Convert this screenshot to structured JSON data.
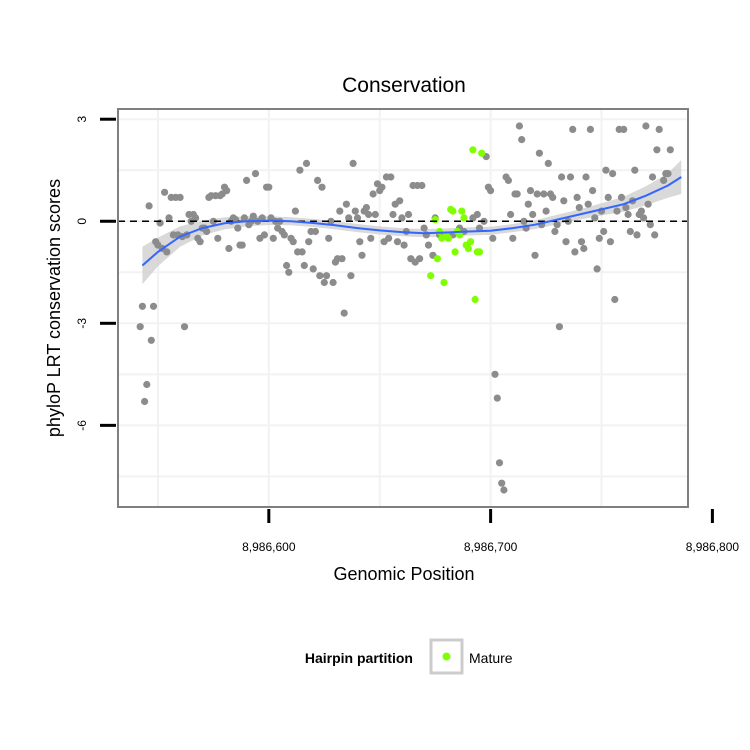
{
  "chart_data": {
    "type": "scatter",
    "title": "Conservation",
    "xlabel": "Genomic Position",
    "ylabel": "phyloP LRT conservation scores",
    "xlim": [
      8986532,
      8986789
    ],
    "ylim": [
      -8.4,
      3.3
    ],
    "x_ticks": [
      8986600,
      8986700,
      8986800
    ],
    "x_tick_labels": [
      "8,986,600",
      "8,986,700",
      "8,986,800"
    ],
    "y_ticks": [
      3,
      0,
      -3,
      -6
    ],
    "y_tick_labels": [
      "3",
      "0",
      "-3",
      "-6"
    ],
    "grid": true,
    "reference_line": {
      "y": 0,
      "style": "dashed"
    },
    "legend": {
      "title": "Hairpin partition",
      "placement": "bottom",
      "entries": [
        "Mature"
      ]
    },
    "colors": {
      "background_points": "#8c8c8c",
      "mature": "#7fff00",
      "trend": "#3366ff",
      "confidence_band": "#cccccc",
      "panel_border": "#7f7f7f",
      "grid": "#f2f2f2"
    },
    "series": [
      {
        "name": "",
        "points": [
          [
            8986542,
            -3.1
          ],
          [
            8986543,
            -2.5
          ],
          [
            8986544,
            -5.3
          ],
          [
            8986545,
            -4.8
          ],
          [
            8986546,
            0.45
          ],
          [
            8986547,
            -3.5
          ],
          [
            8986548,
            -2.5
          ],
          [
            8986549,
            -0.6
          ],
          [
            8986550,
            -0.7
          ],
          [
            8986551,
            -0.05
          ],
          [
            8986552,
            -0.8
          ],
          [
            8986553,
            0.85
          ],
          [
            8986554,
            -0.9
          ],
          [
            8986555,
            0.1
          ],
          [
            8986556,
            0.7
          ],
          [
            8986557,
            -0.4
          ],
          [
            8986558,
            0.7
          ],
          [
            8986559,
            -0.4
          ],
          [
            8986560,
            0.7
          ],
          [
            8986561,
            -0.45
          ],
          [
            8986562,
            -3.1
          ],
          [
            8986563,
            -0.4
          ],
          [
            8986564,
            0.2
          ],
          [
            8986565,
            0.0
          ],
          [
            8986566,
            0.2
          ],
          [
            8986567,
            0.1
          ],
          [
            8986568,
            -0.5
          ],
          [
            8986569,
            -0.6
          ],
          [
            8986570,
            -0.2
          ],
          [
            8986571,
            -0.2
          ],
          [
            8986572,
            -0.3
          ],
          [
            8986573,
            0.7
          ],
          [
            8986574,
            0.75
          ],
          [
            8986575,
            0.0
          ],
          [
            8986576,
            0.75
          ],
          [
            8986577,
            -0.5
          ],
          [
            8986578,
            0.75
          ],
          [
            8986579,
            0.8
          ],
          [
            8986580,
            1.0
          ],
          [
            8986581,
            0.9
          ],
          [
            8986582,
            -0.8
          ],
          [
            8986583,
            0.0
          ],
          [
            8986584,
            0.1
          ],
          [
            8986585,
            0.05
          ],
          [
            8986586,
            -0.2
          ],
          [
            8986587,
            -0.7
          ],
          [
            8986588,
            -0.7
          ],
          [
            8986589,
            0.1
          ],
          [
            8986590,
            1.2
          ],
          [
            8986591,
            -0.1
          ],
          [
            8986592,
            0.0
          ],
          [
            8986593,
            0.15
          ],
          [
            8986594,
            1.4
          ],
          [
            8986595,
            0.0
          ],
          [
            8986596,
            -0.5
          ],
          [
            8986597,
            0.1
          ],
          [
            8986598,
            -0.4
          ],
          [
            8986599,
            1.0
          ],
          [
            8986600,
            1.0
          ],
          [
            8986601,
            0.1
          ],
          [
            8986602,
            -0.5
          ],
          [
            8986603,
            0.0
          ],
          [
            8986604,
            -0.2
          ],
          [
            8986605,
            0.0
          ],
          [
            8986606,
            -0.3
          ],
          [
            8986607,
            -0.4
          ],
          [
            8986608,
            -1.3
          ],
          [
            8986609,
            -1.5
          ],
          [
            8986610,
            -0.5
          ],
          [
            8986611,
            -0.6
          ],
          [
            8986612,
            0.3
          ],
          [
            8986613,
            -0.9
          ],
          [
            8986614,
            1.5
          ],
          [
            8986615,
            -0.9
          ],
          [
            8986616,
            -1.3
          ],
          [
            8986617,
            1.7
          ],
          [
            8986618,
            -0.6
          ],
          [
            8986619,
            -0.3
          ],
          [
            8986620,
            -1.4
          ],
          [
            8986621,
            -0.3
          ],
          [
            8986622,
            1.2
          ],
          [
            8986623,
            -1.6
          ],
          [
            8986624,
            1.0
          ],
          [
            8986625,
            -1.8
          ],
          [
            8986626,
            -1.6
          ],
          [
            8986627,
            -0.5
          ],
          [
            8986628,
            0.0
          ],
          [
            8986629,
            -1.8
          ],
          [
            8986630,
            -1.2
          ],
          [
            8986631,
            -1.1
          ],
          [
            8986632,
            0.3
          ],
          [
            8986633,
            -1.1
          ],
          [
            8986634,
            -2.7
          ],
          [
            8986635,
            0.5
          ],
          [
            8986636,
            0.1
          ],
          [
            8986637,
            -1.6
          ],
          [
            8986638,
            1.7
          ],
          [
            8986639,
            0.3
          ],
          [
            8986640,
            0.1
          ],
          [
            8986641,
            -0.6
          ],
          [
            8986642,
            -1.0
          ],
          [
            8986643,
            0.3
          ],
          [
            8986644,
            0.4
          ],
          [
            8986645,
            0.2
          ],
          [
            8986646,
            -0.5
          ],
          [
            8986647,
            0.8
          ],
          [
            8986648,
            0.2
          ],
          [
            8986649,
            1.1
          ],
          [
            8986650,
            0.9
          ],
          [
            8986651,
            1.0
          ],
          [
            8986652,
            -0.6
          ],
          [
            8986653,
            1.3
          ],
          [
            8986654,
            -0.5
          ],
          [
            8986655,
            1.3
          ],
          [
            8986656,
            0.2
          ],
          [
            8986657,
            0.5
          ],
          [
            8986658,
            -0.6
          ],
          [
            8986659,
            0.6
          ],
          [
            8986660,
            0.1
          ],
          [
            8986661,
            -0.7
          ],
          [
            8986662,
            -0.3
          ],
          [
            8986663,
            0.2
          ],
          [
            8986664,
            -1.1
          ],
          [
            8986665,
            1.05
          ],
          [
            8986666,
            -1.2
          ],
          [
            8986667,
            1.05
          ],
          [
            8986668,
            -1.1
          ],
          [
            8986669,
            1.05
          ],
          [
            8986670,
            -0.2
          ],
          [
            8986671,
            -0.4
          ],
          [
            8986672,
            -0.7
          ],
          [
            8986674,
            -1.0
          ],
          [
            8986675,
            0.1
          ],
          [
            8986677,
            -0.4
          ],
          [
            8986683,
            -0.4
          ],
          [
            8986686,
            -0.2
          ],
          [
            8986688,
            -0.3
          ],
          [
            8986692,
            0.1
          ],
          [
            8986694,
            0.2
          ],
          [
            8986695,
            -0.2
          ],
          [
            8986697,
            0.0
          ],
          [
            8986698,
            1.9
          ],
          [
            8986699,
            1.0
          ],
          [
            8986700,
            0.9
          ],
          [
            8986701,
            -0.5
          ],
          [
            8986702,
            -4.5
          ],
          [
            8986703,
            -5.2
          ],
          [
            8986704,
            -7.1
          ],
          [
            8986705,
            -7.7
          ],
          [
            8986706,
            -7.9
          ],
          [
            8986707,
            1.3
          ],
          [
            8986708,
            1.2
          ],
          [
            8986709,
            0.2
          ],
          [
            8986710,
            -0.5
          ],
          [
            8986711,
            0.8
          ],
          [
            8986712,
            0.8
          ],
          [
            8986713,
            2.8
          ],
          [
            8986714,
            2.4
          ],
          [
            8986715,
            0.0
          ],
          [
            8986716,
            -0.2
          ],
          [
            8986717,
            0.5
          ],
          [
            8986718,
            0.9
          ],
          [
            8986719,
            0.2
          ],
          [
            8986720,
            -1.0
          ],
          [
            8986721,
            0.8
          ],
          [
            8986722,
            2.0
          ],
          [
            8986723,
            -0.1
          ],
          [
            8986724,
            0.8
          ],
          [
            8986725,
            0.3
          ],
          [
            8986726,
            1.7
          ],
          [
            8986727,
            0.8
          ],
          [
            8986728,
            0.7
          ],
          [
            8986729,
            -0.3
          ],
          [
            8986730,
            -0.1
          ],
          [
            8986731,
            -3.1
          ],
          [
            8986732,
            1.3
          ],
          [
            8986733,
            0.6
          ],
          [
            8986734,
            -0.6
          ],
          [
            8986735,
            0.0
          ],
          [
            8986736,
            1.3
          ],
          [
            8986737,
            2.7
          ],
          [
            8986738,
            -0.9
          ],
          [
            8986739,
            0.7
          ],
          [
            8986740,
            0.4
          ],
          [
            8986741,
            -0.6
          ],
          [
            8986742,
            -0.8
          ],
          [
            8986743,
            1.3
          ],
          [
            8986744,
            0.5
          ],
          [
            8986745,
            2.7
          ],
          [
            8986746,
            0.9
          ],
          [
            8986747,
            0.1
          ],
          [
            8986748,
            -1.4
          ],
          [
            8986749,
            -0.5
          ],
          [
            8986750,
            0.3
          ],
          [
            8986751,
            -0.3
          ],
          [
            8986752,
            1.5
          ],
          [
            8986753,
            0.7
          ],
          [
            8986754,
            -0.6
          ],
          [
            8986755,
            1.4
          ],
          [
            8986756,
            -2.3
          ],
          [
            8986757,
            0.3
          ],
          [
            8986758,
            2.7
          ],
          [
            8986759,
            0.7
          ],
          [
            8986760,
            2.7
          ],
          [
            8986761,
            0.4
          ],
          [
            8986762,
            0.2
          ],
          [
            8986763,
            -0.3
          ],
          [
            8986764,
            0.6
          ],
          [
            8986765,
            1.5
          ],
          [
            8986766,
            -0.4
          ],
          [
            8986767,
            0.2
          ],
          [
            8986768,
            0.3
          ],
          [
            8986769,
            0.1
          ],
          [
            8986770,
            2.8
          ],
          [
            8986771,
            0.5
          ],
          [
            8986772,
            -0.1
          ],
          [
            8986773,
            1.3
          ],
          [
            8986774,
            -0.4
          ],
          [
            8986775,
            2.1
          ],
          [
            8986776,
            2.7
          ],
          [
            8986778,
            1.2
          ],
          [
            8986779,
            1.4
          ],
          [
            8986780,
            1.4
          ],
          [
            8986781,
            2.1
          ]
        ]
      },
      {
        "name": "Mature",
        "points": [
          [
            8986673,
            -1.6
          ],
          [
            8986675,
            0.05
          ],
          [
            8986676,
            -1.1
          ],
          [
            8986677,
            -0.3
          ],
          [
            8986678,
            -0.5
          ],
          [
            8986679,
            -1.8
          ],
          [
            8986680,
            -0.4
          ],
          [
            8986681,
            -0.5
          ],
          [
            8986682,
            0.35
          ],
          [
            8986683,
            0.3
          ],
          [
            8986684,
            -0.9
          ],
          [
            8986685,
            -0.3
          ],
          [
            8986686,
            -0.4
          ],
          [
            8986687,
            0.3
          ],
          [
            8986688,
            0.1
          ],
          [
            8986689,
            -0.7
          ],
          [
            8986690,
            -0.8
          ],
          [
            8986691,
            -0.6
          ],
          [
            8986692,
            2.1
          ],
          [
            8986693,
            -2.3
          ],
          [
            8986694,
            -0.9
          ],
          [
            8986695,
            -0.9
          ],
          [
            8986696,
            2.0
          ]
        ]
      }
    ],
    "trend_line": [
      [
        8986543,
        -1.3
      ],
      [
        8986550,
        -0.9
      ],
      [
        8986560,
        -0.45
      ],
      [
        8986570,
        -0.2
      ],
      [
        8986580,
        -0.06
      ],
      [
        8986590,
        0.0
      ],
      [
        8986600,
        0.02
      ],
      [
        8986610,
        0.0
      ],
      [
        8986620,
        -0.05
      ],
      [
        8986630,
        -0.12
      ],
      [
        8986640,
        -0.2
      ],
      [
        8986650,
        -0.27
      ],
      [
        8986660,
        -0.32
      ],
      [
        8986670,
        -0.35
      ],
      [
        8986680,
        -0.33
      ],
      [
        8986690,
        -0.3
      ],
      [
        8986700,
        -0.28
      ],
      [
        8986710,
        -0.2
      ],
      [
        8986720,
        -0.1
      ],
      [
        8986730,
        0.05
      ],
      [
        8986740,
        0.2
      ],
      [
        8986750,
        0.35
      ],
      [
        8986760,
        0.5
      ],
      [
        8986770,
        0.75
      ],
      [
        8986780,
        1.05
      ],
      [
        8986786,
        1.3
      ]
    ],
    "confidence_band_halfwidth": [
      0.55,
      0.42,
      0.3,
      0.22,
      0.18,
      0.15,
      0.13,
      0.12,
      0.12,
      0.12,
      0.12,
      0.12,
      0.12,
      0.12,
      0.12,
      0.12,
      0.12,
      0.12,
      0.13,
      0.14,
      0.15,
      0.18,
      0.22,
      0.28,
      0.36,
      0.5
    ]
  }
}
